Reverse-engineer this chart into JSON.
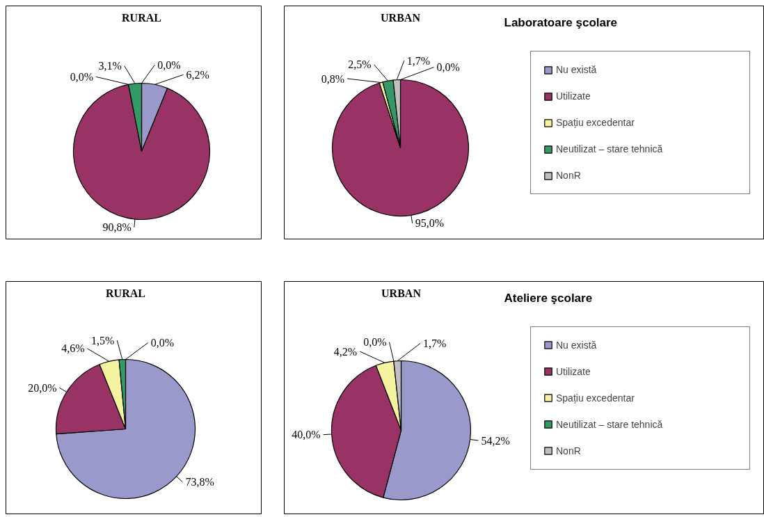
{
  "chart_data": [
    {
      "type": "pie",
      "title": "RURAL",
      "categories": [
        null,
        null,
        null,
        null,
        null
      ],
      "values": [
        6.2,
        90.8,
        0.0,
        3.1,
        0.0
      ],
      "colors": [
        "#9999cc",
        "#993366",
        "#f5f3a0",
        "#339966",
        "#c0c0c0"
      ],
      "value_labels": [
        "6,2%",
        "90,8%",
        "0,0%",
        "3,1%",
        "0,0%"
      ],
      "legend": false
    },
    {
      "type": "pie",
      "title": "URBAN",
      "subtitle": "Laboratoare şcolare",
      "categories": [
        "Nu există",
        "Utilizate",
        "Spațiu excedentar",
        "Neutilizat – stare tehnică",
        "NonR"
      ],
      "values": [
        0.0,
        95.0,
        0.8,
        2.5,
        1.7
      ],
      "colors": [
        "#9999cc",
        "#993366",
        "#f5f3a0",
        "#339966",
        "#c0c0c0"
      ],
      "value_labels": [
        "0,0%",
        "95,0%",
        "0,8%",
        "2,5%",
        "1,7%"
      ],
      "legend": "right"
    },
    {
      "type": "pie",
      "title": "RURAL",
      "categories": [
        null,
        null,
        null,
        null,
        null
      ],
      "values": [
        73.8,
        20.0,
        4.6,
        1.5,
        0.0
      ],
      "colors": [
        "#9999cc",
        "#993366",
        "#f5f3a0",
        "#339966",
        "#c0c0c0"
      ],
      "value_labels": [
        "73,8%",
        "20,0%",
        "4,6%",
        "1,5%",
        "0,0%"
      ],
      "legend": false
    },
    {
      "type": "pie",
      "title": "URBAN",
      "subtitle": "Ateliere şcolare",
      "categories": [
        "Nu există",
        "Utilizate",
        "Spațiu excedentar",
        "Neutilizat – stare tehnică",
        "NonR"
      ],
      "values": [
        54.2,
        40.0,
        4.2,
        0.0,
        1.7
      ],
      "colors": [
        "#9999cc",
        "#993366",
        "#f5f3a0",
        "#339966",
        "#c0c0c0"
      ],
      "value_labels": [
        "54,2%",
        "40,0%",
        "4,2%",
        "0,0%",
        "1,7%"
      ],
      "legend": "right"
    }
  ]
}
